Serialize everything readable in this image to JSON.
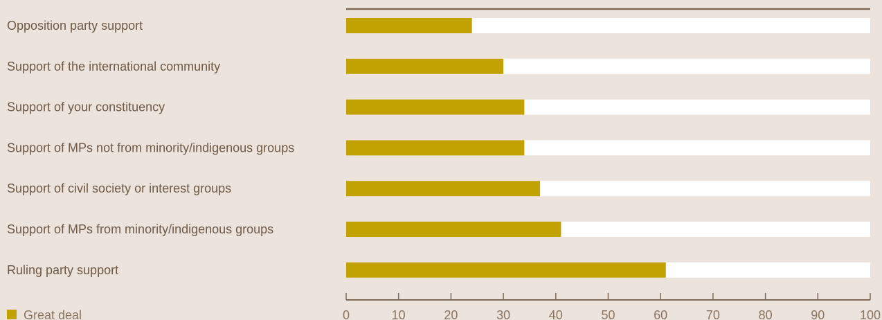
{
  "chart_data": {
    "type": "bar",
    "orientation": "horizontal",
    "categories": [
      "Opposition party support",
      "Support of the international community",
      "Support of your constituency",
      "Support of MPs not from minority/indigenous groups",
      "Support of civil society or interest groups",
      "Support of MPs from minority/indigenous groups",
      "Ruling party support"
    ],
    "series": [
      {
        "name": "Great deal",
        "values": [
          24,
          30,
          34,
          34,
          37,
          41,
          61
        ]
      }
    ],
    "xlim": [
      0,
      100
    ],
    "xticks": [
      0,
      10,
      20,
      30,
      40,
      50,
      60,
      70,
      80,
      90,
      100
    ],
    "legend_position": "bottom-left",
    "grid": false,
    "colors": {
      "bar": "#c2a103",
      "track": "#ffffff",
      "axis": "#7d6a58",
      "background": "#ebe3dc"
    }
  }
}
